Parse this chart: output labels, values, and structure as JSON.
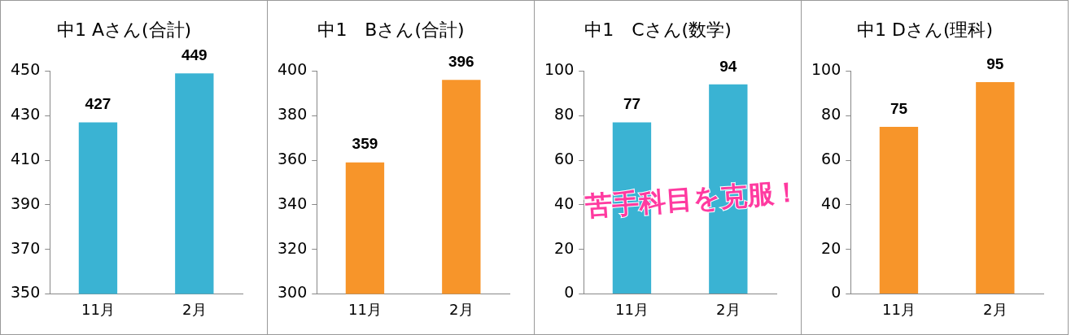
{
  "chart_data": [
    {
      "type": "bar",
      "title": "中1 Aさん(合計)",
      "categories": [
        "11月",
        "2月"
      ],
      "values": [
        427,
        449
      ],
      "color": "#3ab3d3",
      "ylim": [
        350,
        450
      ],
      "yticks": [
        350,
        370,
        390,
        410,
        430,
        450
      ],
      "data_labels": true
    },
    {
      "type": "bar",
      "title": "中1　Bさん(合計)",
      "categories": [
        "11月",
        "2月"
      ],
      "values": [
        359,
        396
      ],
      "color": "#f7952a",
      "ylim": [
        300,
        400
      ],
      "yticks": [
        300,
        320,
        340,
        360,
        380,
        400
      ],
      "data_labels": true
    },
    {
      "type": "bar",
      "title": "中1　Cさん(数学)",
      "categories": [
        "11月",
        "2月"
      ],
      "values": [
        77,
        94
      ],
      "color": "#3ab3d3",
      "ylim": [
        0,
        100
      ],
      "yticks": [
        0,
        20,
        40,
        60,
        80,
        100
      ],
      "data_labels": true,
      "annotations": [
        "苦手科目を克服！"
      ]
    },
    {
      "type": "bar",
      "title": "中1 Dさん(理科)",
      "categories": [
        "11月",
        "2月"
      ],
      "values": [
        75,
        95
      ],
      "color": "#f7952a",
      "ylim": [
        0,
        100
      ],
      "yticks": [
        0,
        20,
        40,
        60,
        80,
        100
      ],
      "data_labels": true
    }
  ]
}
